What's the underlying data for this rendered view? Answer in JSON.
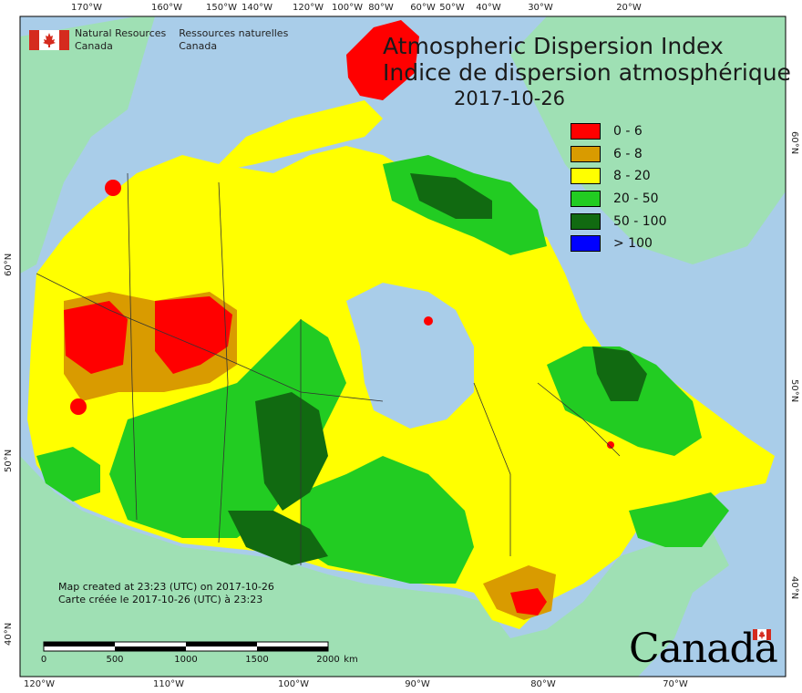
{
  "map": {
    "title_en": "Atmospheric Dispersion Index",
    "title_fr": "Indice de dispersion atmosphérique",
    "date": "2017-10-26",
    "agency_en": [
      "Natural Resources",
      "Canada"
    ],
    "agency_fr": [
      "Ressources naturelles",
      "Canada"
    ],
    "credit_en": "Map created at 23:23 (UTC) on 2017-10-26",
    "credit_fr": "Carte créée le 2017-10-26 (UTC) à 23:23",
    "wordmark": "Canada",
    "flag_color": "#d52b1e"
  },
  "legend": [
    {
      "label": "0 - 6",
      "color": "#ff0000"
    },
    {
      "label": "6 - 8",
      "color": "#d99b00"
    },
    {
      "label": "8 - 20",
      "color": "#ffff00"
    },
    {
      "label": "20 - 50",
      "color": "#22cc22"
    },
    {
      "label": "50 - 100",
      "color": "#116a11"
    },
    {
      "label": "> 100",
      "color": "#0000ff"
    }
  ],
  "scale": {
    "labels": [
      "0",
      "500",
      "1000",
      "1500",
      "2000",
      "km"
    ]
  },
  "graticule": {
    "top_longitudes": [
      "170°W",
      "160°W",
      "150°W",
      "140°W",
      "120°W",
      "100°W",
      "80°W",
      "60°W",
      "50°W",
      "40°W",
      "30°W",
      "20°W"
    ],
    "bottom_longitudes": [
      "120°W",
      "110°W",
      "100°W",
      "90°W",
      "80°W",
      "70°W"
    ],
    "left_latitudes": [
      "60°N",
      "50°N",
      "40°N"
    ],
    "right_latitudes": [
      "60°N",
      "50°N",
      "40°N"
    ]
  },
  "colors": {
    "ocean": "#a9cde9",
    "foreign_land": "#9fe0b4",
    "frame": "#000000"
  }
}
